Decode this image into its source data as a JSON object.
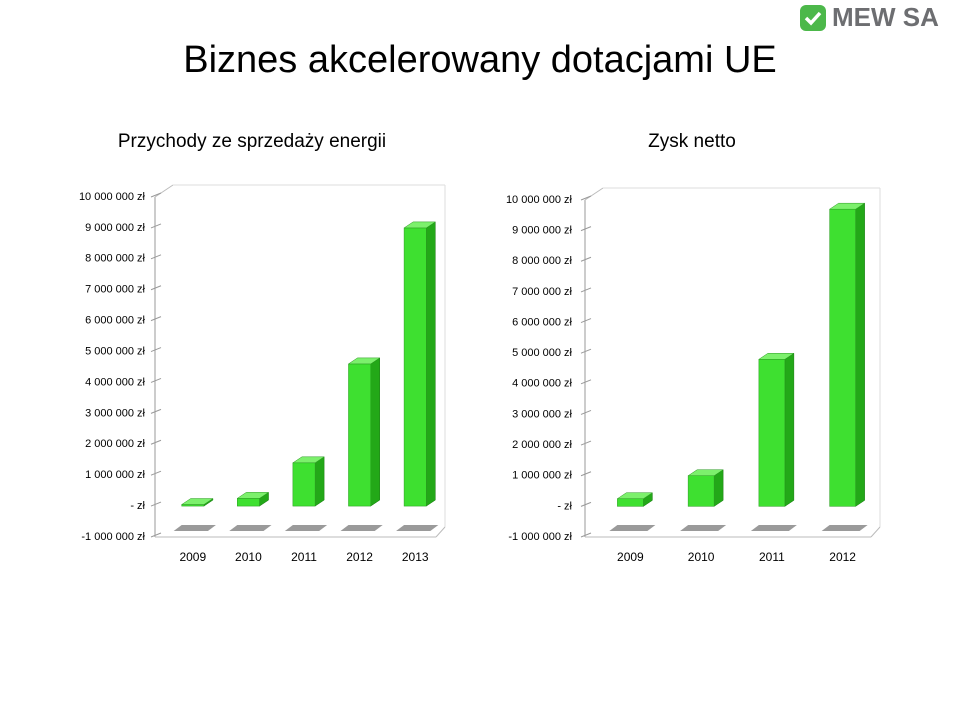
{
  "logo": "MEW SA",
  "title": "Biznes akcelerowany dotacjami UE",
  "chart_data": [
    {
      "type": "bar3d",
      "title": "Przychody ze sprzedaży energii",
      "categories": [
        "2009",
        "2010",
        "2011",
        "2012",
        "2013"
      ],
      "values": [
        50000,
        250000,
        1400000,
        4600000,
        9000000
      ],
      "color": "#3ee030",
      "ylim": [
        -1000000,
        10000000
      ],
      "yticks": [
        {
          "value": -1000000,
          "label": "-1 000 000 zł"
        },
        {
          "value": 0,
          "label": "- zł"
        },
        {
          "value": 1000000,
          "label": "1 000 000 zł"
        },
        {
          "value": 2000000,
          "label": "2 000 000 zł"
        },
        {
          "value": 3000000,
          "label": "3 000 000 zł"
        },
        {
          "value": 4000000,
          "label": "4 000 000 zł"
        },
        {
          "value": 5000000,
          "label": "5 000 000 zł"
        },
        {
          "value": 6000000,
          "label": "6 000 000 zł"
        },
        {
          "value": 7000000,
          "label": "7 000 000 zł"
        },
        {
          "value": 8000000,
          "label": "8 000 000 zł"
        },
        {
          "value": 9000000,
          "label": "9 000 000 zł"
        },
        {
          "value": 10000000,
          "label": "10 000 000 zł"
        }
      ]
    },
    {
      "type": "bar3d",
      "title": "Zysk netto",
      "categories": [
        "2009",
        "2010",
        "2011",
        "2012"
      ],
      "values": [
        250000,
        1000000,
        4800000,
        9700000
      ],
      "color": "#3ee030",
      "ylim": [
        -1000000,
        10000000
      ],
      "yticks": [
        {
          "value": -1000000,
          "label": "-1 000 000 zł"
        },
        {
          "value": 0,
          "label": "- zł"
        },
        {
          "value": 1000000,
          "label": "1 000 000 zł"
        },
        {
          "value": 2000000,
          "label": "2 000 000 zł"
        },
        {
          "value": 3000000,
          "label": "3 000 000 zł"
        },
        {
          "value": 4000000,
          "label": "4 000 000 zł"
        },
        {
          "value": 5000000,
          "label": "5 000 000 zł"
        },
        {
          "value": 6000000,
          "label": "6 000 000 zł"
        },
        {
          "value": 7000000,
          "label": "7 000 000 zł"
        },
        {
          "value": 8000000,
          "label": "8 000 000 zł"
        },
        {
          "value": 9000000,
          "label": "9 000 000 zł"
        },
        {
          "value": 10000000,
          "label": "10 000 000 zł"
        }
      ]
    }
  ]
}
